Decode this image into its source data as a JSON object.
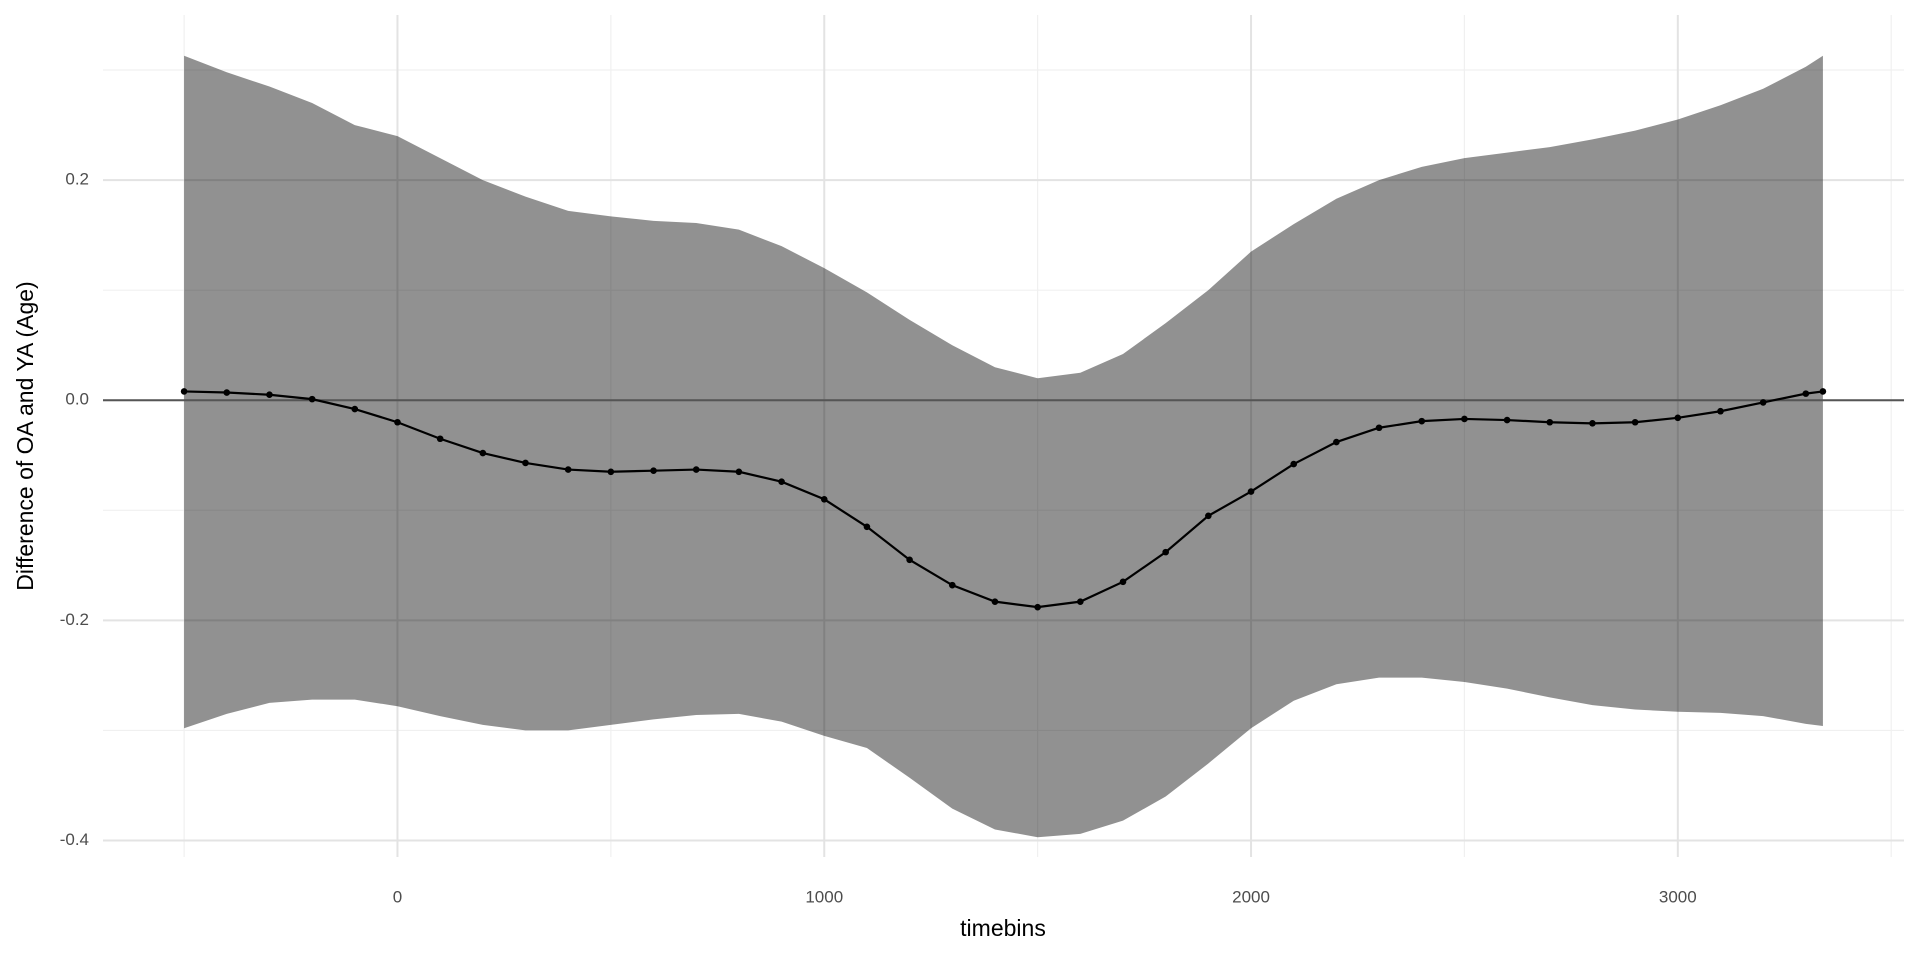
{
  "chart_data": {
    "type": "line",
    "x_label": "timebins",
    "y_label": "Difference of OA and YA (Age)",
    "x": [
      -500,
      -400,
      -300,
      -200,
      -100,
      0,
      100,
      200,
      300,
      400,
      500,
      600,
      700,
      800,
      900,
      1000,
      1100,
      1200,
      1300,
      1400,
      1500,
      1600,
      1700,
      1800,
      1900,
      2000,
      2100,
      2200,
      2300,
      2400,
      2500,
      2600,
      2700,
      2800,
      2900,
      3000,
      3100,
      3200,
      3300,
      3340
    ],
    "series": [
      {
        "color": "#000000",
        "values": [
          0.008,
          0.007,
          0.005,
          0.001,
          -0.008,
          -0.02,
          -0.035,
          -0.048,
          -0.057,
          -0.063,
          -0.065,
          -0.064,
          -0.063,
          -0.065,
          -0.074,
          -0.09,
          -0.115,
          -0.145,
          -0.168,
          -0.183,
          -0.188,
          -0.183,
          -0.165,
          -0.138,
          -0.105,
          -0.083,
          -0.058,
          -0.038,
          -0.025,
          -0.019,
          -0.017,
          -0.018,
          -0.02,
          -0.021,
          -0.02,
          -0.016,
          -0.01,
          -0.002,
          0.006,
          0.008
        ]
      }
    ],
    "band": {
      "color": "#000000",
      "opacity": 0.43,
      "upper": [
        0.313,
        0.298,
        0.285,
        0.27,
        0.25,
        0.24,
        0.22,
        0.2,
        0.185,
        0.172,
        0.167,
        0.163,
        0.161,
        0.155,
        0.14,
        0.12,
        0.098,
        0.073,
        0.05,
        0.03,
        0.02,
        0.025,
        0.042,
        0.07,
        0.1,
        0.135,
        0.16,
        0.183,
        0.2,
        0.212,
        0.22,
        0.225,
        0.23,
        0.237,
        0.245,
        0.255,
        0.268,
        0.283,
        0.303,
        0.313
      ],
      "lower": [
        -0.298,
        -0.285,
        -0.275,
        -0.272,
        -0.272,
        -0.278,
        -0.287,
        -0.295,
        -0.3,
        -0.3,
        -0.295,
        -0.29,
        -0.286,
        -0.285,
        -0.292,
        -0.305,
        -0.316,
        -0.343,
        -0.371,
        -0.39,
        -0.397,
        -0.394,
        -0.382,
        -0.36,
        -0.33,
        -0.298,
        -0.273,
        -0.258,
        -0.252,
        -0.252,
        -0.256,
        -0.262,
        -0.27,
        -0.277,
        -0.281,
        -0.283,
        -0.284,
        -0.287,
        -0.294,
        -0.296
      ]
    },
    "hline": {
      "value": 0,
      "color": "#555555"
    },
    "xlim": [
      -690,
      3530
    ],
    "ylim": [
      -0.415,
      0.35
    ],
    "xticks": [
      0,
      1000,
      2000,
      3000
    ],
    "yticks": [
      {
        "value": -0.4,
        "label": "-0.4"
      },
      {
        "value": -0.2,
        "label": "-0.2"
      },
      {
        "value": 0,
        "label": "0.0"
      },
      {
        "value": 0.2,
        "label": "0.2"
      }
    ],
    "xminorticks": [
      -500,
      500,
      1500,
      2500,
      3500
    ],
    "yminorticks": [
      -0.3,
      -0.1,
      0.1,
      0.3
    ],
    "grid": true
  }
}
